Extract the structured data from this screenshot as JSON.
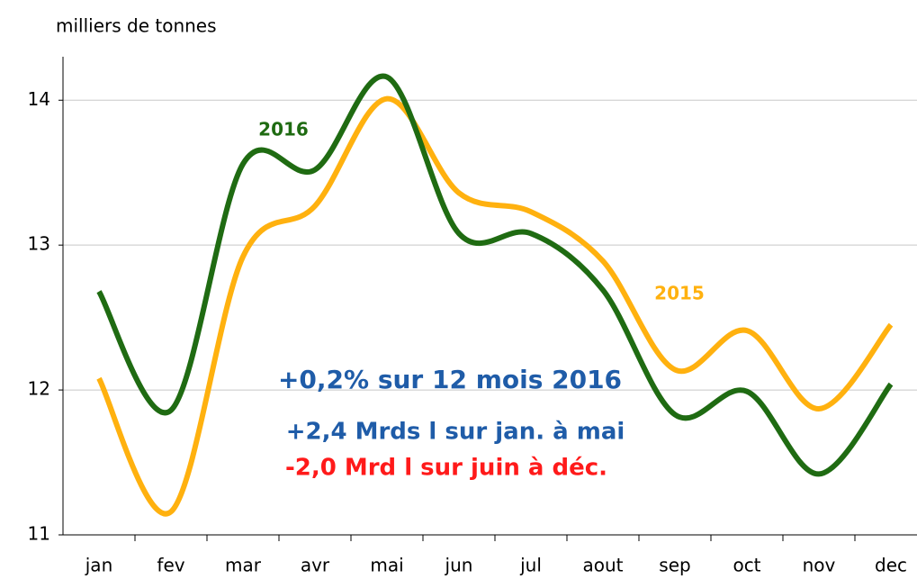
{
  "chart_data": {
    "type": "line",
    "y_label": "milliers de tonnes",
    "categories": [
      "jan",
      "fev",
      "mar",
      "avr",
      "mai",
      "jun",
      "jul",
      "aout",
      "sep",
      "oct",
      "nov",
      "dec"
    ],
    "series": [
      {
        "name": "2016",
        "color": "#1f6b12",
        "values": [
          12.68,
          11.86,
          13.56,
          13.52,
          14.16,
          13.08,
          13.08,
          12.69,
          11.83,
          11.99,
          11.42,
          12.04
        ]
      },
      {
        "name": "2015",
        "color": "#ffb10f",
        "values": [
          12.08,
          11.16,
          12.92,
          13.27,
          14.01,
          13.36,
          13.23,
          12.89,
          12.14,
          12.41,
          11.87,
          12.45
        ]
      }
    ],
    "ylim": [
      11,
      14.3
    ],
    "yticks": [
      11,
      12,
      13,
      14
    ],
    "grid": true,
    "annotations": [
      {
        "text": "+0,2% sur 12 mois 2016",
        "color": "#1f5ca8"
      },
      {
        "text": "+2,4 Mrds l sur jan. à mai",
        "color": "#1f5ca8"
      },
      {
        "text": "-2,0 Mrd l sur juin à déc.",
        "color": "#ff1a1a"
      }
    ]
  }
}
